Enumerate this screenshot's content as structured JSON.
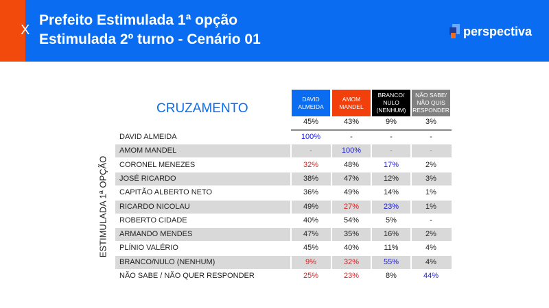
{
  "header": {
    "close_icon": "X",
    "title_line1": "Prefeito Estimulada 1ª opção",
    "title_line2": "Estimulada 2º turno - Cenário 01",
    "logo": "perspectiva",
    "colors": {
      "blue": "#0a6cf0",
      "orange": "#f24a0c"
    }
  },
  "table": {
    "title": "CRUZAMENTO",
    "row_axis_label": "ESTIMULADA 1ª OPÇÃO",
    "columns": [
      {
        "label_lines": [
          "DAVID",
          "ALMEIDA"
        ],
        "color": "#0a6cf0",
        "total": "45%"
      },
      {
        "label_lines": [
          "AMOM",
          "MANDEL"
        ],
        "color": "#f2400c",
        "total": "43%"
      },
      {
        "label_lines": [
          "BRANCO/",
          "NULO",
          "(NENHUM)"
        ],
        "color": "#000000",
        "total": "9%"
      },
      {
        "label_lines": [
          "NÃO SABE/",
          "NÃO QUIS",
          "RESPONDER"
        ],
        "color": "#808080",
        "total": "3%"
      }
    ],
    "rows": [
      {
        "name": "DAVID ALMEIDA",
        "values": [
          "100%",
          "-",
          "-",
          "-"
        ],
        "styles": [
          "blue",
          "",
          "",
          ""
        ]
      },
      {
        "name": "AMOM MANDEL",
        "values": [
          "-",
          "100%",
          "-",
          "-"
        ],
        "styles": [
          "dim",
          "blue",
          "dim",
          "dim"
        ]
      },
      {
        "name": "CORONEL MENEZES",
        "values": [
          "32%",
          "48%",
          "17%",
          "2%"
        ],
        "styles": [
          "red",
          "",
          "blue",
          ""
        ]
      },
      {
        "name": "JOSÉ RICARDO",
        "values": [
          "38%",
          "47%",
          "12%",
          "3%"
        ],
        "styles": [
          "",
          "",
          "",
          ""
        ]
      },
      {
        "name": "CAPITÃO ALBERTO NETO",
        "values": [
          "36%",
          "49%",
          "14%",
          "1%"
        ],
        "styles": [
          "",
          "",
          "",
          ""
        ]
      },
      {
        "name": "RICARDO NICOLAU",
        "values": [
          "49%",
          "27%",
          "23%",
          "1%"
        ],
        "styles": [
          "",
          "red",
          "blue",
          ""
        ]
      },
      {
        "name": "ROBERTO CIDADE",
        "values": [
          "40%",
          "54%",
          "5%",
          "-"
        ],
        "styles": [
          "",
          "",
          "",
          ""
        ]
      },
      {
        "name": "ARMANDO MENDES",
        "values": [
          "47%",
          "35%",
          "16%",
          "2%"
        ],
        "styles": [
          "",
          "",
          "",
          ""
        ]
      },
      {
        "name": "PLÍNIO VALÉRIO",
        "values": [
          "45%",
          "40%",
          "11%",
          "4%"
        ],
        "styles": [
          "",
          "",
          "",
          ""
        ]
      },
      {
        "name": "BRANCO/NULO (NENHUM)",
        "values": [
          "9%",
          "32%",
          "55%",
          "4%"
        ],
        "styles": [
          "red",
          "red",
          "blue",
          ""
        ]
      },
      {
        "name": "NÃO SABE / NÃO QUER RESPONDER",
        "values": [
          "25%",
          "23%",
          "8%",
          "44%"
        ],
        "styles": [
          "red",
          "red",
          "",
          "blue"
        ]
      }
    ]
  }
}
